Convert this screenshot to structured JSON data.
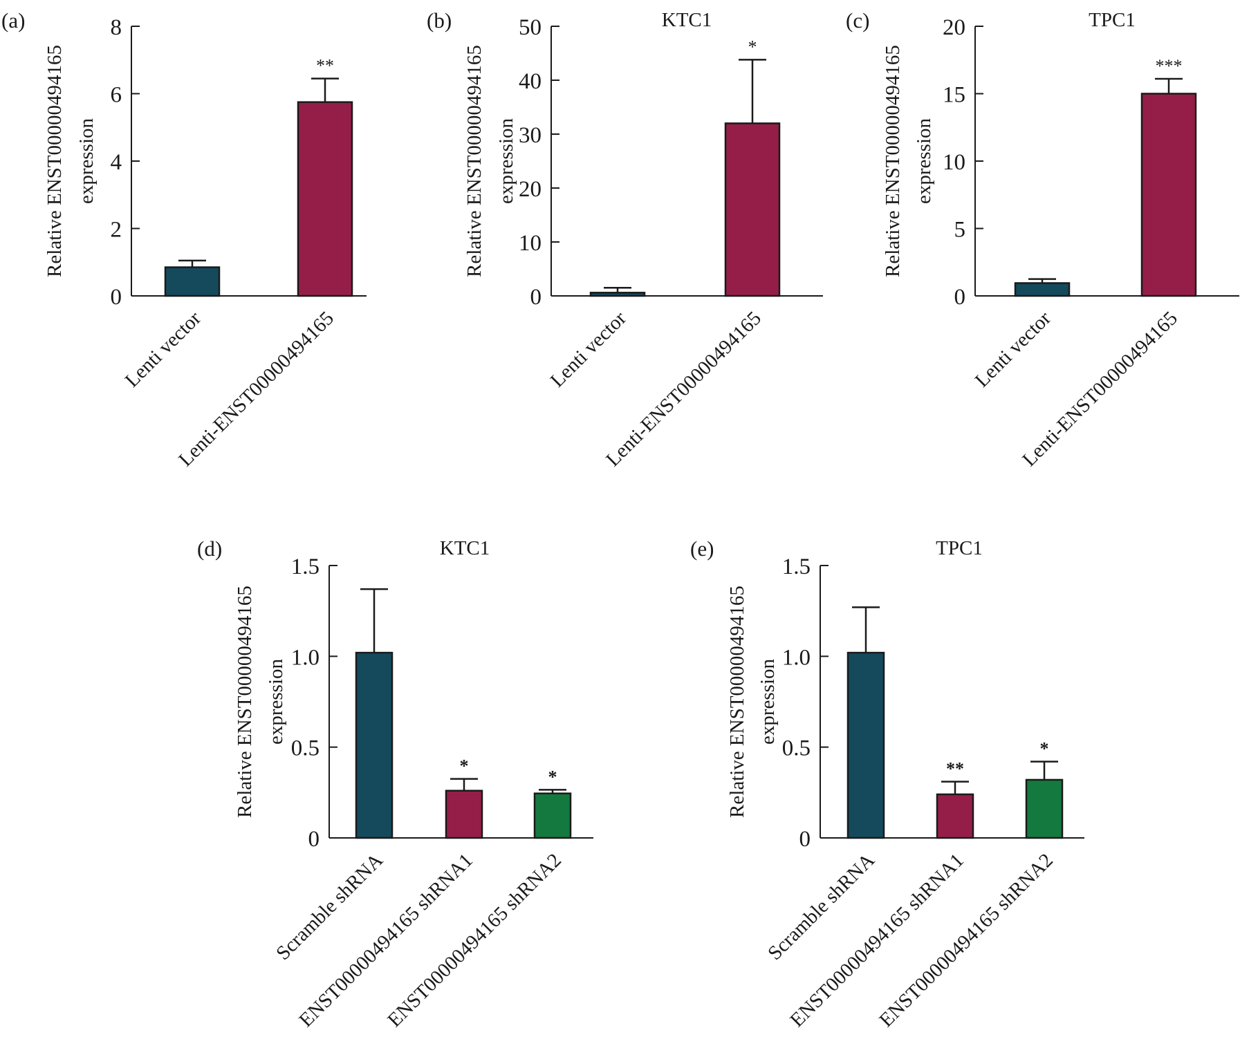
{
  "chart_data": [
    {
      "type": "bar",
      "panel": "(a)",
      "title": "",
      "ylabel": [
        "Relative ENST00000494165",
        "expression"
      ],
      "ylim": [
        0,
        8
      ],
      "yticks": [
        "0",
        "2",
        "4",
        "6",
        "8"
      ],
      "categories": [
        "Lenti vector",
        "Lenti-ENST00000494165"
      ],
      "values": [
        0.85,
        5.75
      ],
      "errors": [
        0.2,
        0.7
      ],
      "significance": [
        "",
        "**"
      ],
      "colors": [
        "#144a5c",
        "#951e49"
      ],
      "grid": false
    },
    {
      "type": "bar",
      "panel": "(b)",
      "title": "KTC1",
      "ylabel": [
        "Relative ENST00000494165",
        "expression"
      ],
      "ylim": [
        0,
        50
      ],
      "yticks": [
        "0",
        "10",
        "20",
        "30",
        "40",
        "50"
      ],
      "categories": [
        "Lenti vector",
        "Lenti-ENST00000494165"
      ],
      "values": [
        0.6,
        32
      ],
      "errors": [
        0.9,
        11.8
      ],
      "significance": [
        "",
        "*"
      ],
      "colors": [
        "#144a5c",
        "#951e49"
      ],
      "grid": false
    },
    {
      "type": "bar",
      "panel": "(c)",
      "title": "TPC1",
      "ylabel": [
        "Relative ENST00000494165",
        "expression"
      ],
      "ylim": [
        0,
        20
      ],
      "yticks": [
        "0",
        "5",
        "10",
        "15",
        "20"
      ],
      "categories": [
        "Lenti vector",
        "Lenti-ENST00000494165"
      ],
      "values": [
        0.95,
        15
      ],
      "errors": [
        0.3,
        1.1
      ],
      "significance": [
        "",
        "***"
      ],
      "colors": [
        "#144a5c",
        "#951e49"
      ],
      "grid": false
    },
    {
      "type": "bar",
      "panel": "(d)",
      "title": "KTC1",
      "ylabel": [
        "Relative ENST00000494165",
        "expression"
      ],
      "ylim": [
        0,
        1.5
      ],
      "yticks": [
        "0",
        "0.5",
        "1.0",
        "1.5"
      ],
      "categories": [
        "Scramble shRNA",
        "ENST00000494165 shRNA1",
        "ENST00000494165 shRNA2"
      ],
      "values": [
        1.02,
        0.26,
        0.245
      ],
      "errors": [
        0.35,
        0.065,
        0.02
      ],
      "significance": [
        "",
        "*",
        "*"
      ],
      "colors": [
        "#144a5c",
        "#951e49",
        "#14793e"
      ],
      "grid": false
    },
    {
      "type": "bar",
      "panel": "(e)",
      "title": "TPC1",
      "ylabel": [
        "Relative ENST00000494165",
        "expression"
      ],
      "ylim": [
        0,
        1.5
      ],
      "yticks": [
        "0",
        "0.5",
        "1.0",
        "1.5"
      ],
      "categories": [
        "Scramble shRNA",
        "ENST00000494165 shRNA1",
        "ENST00000494165 shRNA2"
      ],
      "values": [
        1.02,
        0.24,
        0.32
      ],
      "errors": [
        0.25,
        0.07,
        0.1
      ],
      "significance": [
        "",
        "**",
        "*"
      ],
      "colors": [
        "#144a5c",
        "#951e49",
        "#14793e"
      ],
      "grid": false
    }
  ]
}
